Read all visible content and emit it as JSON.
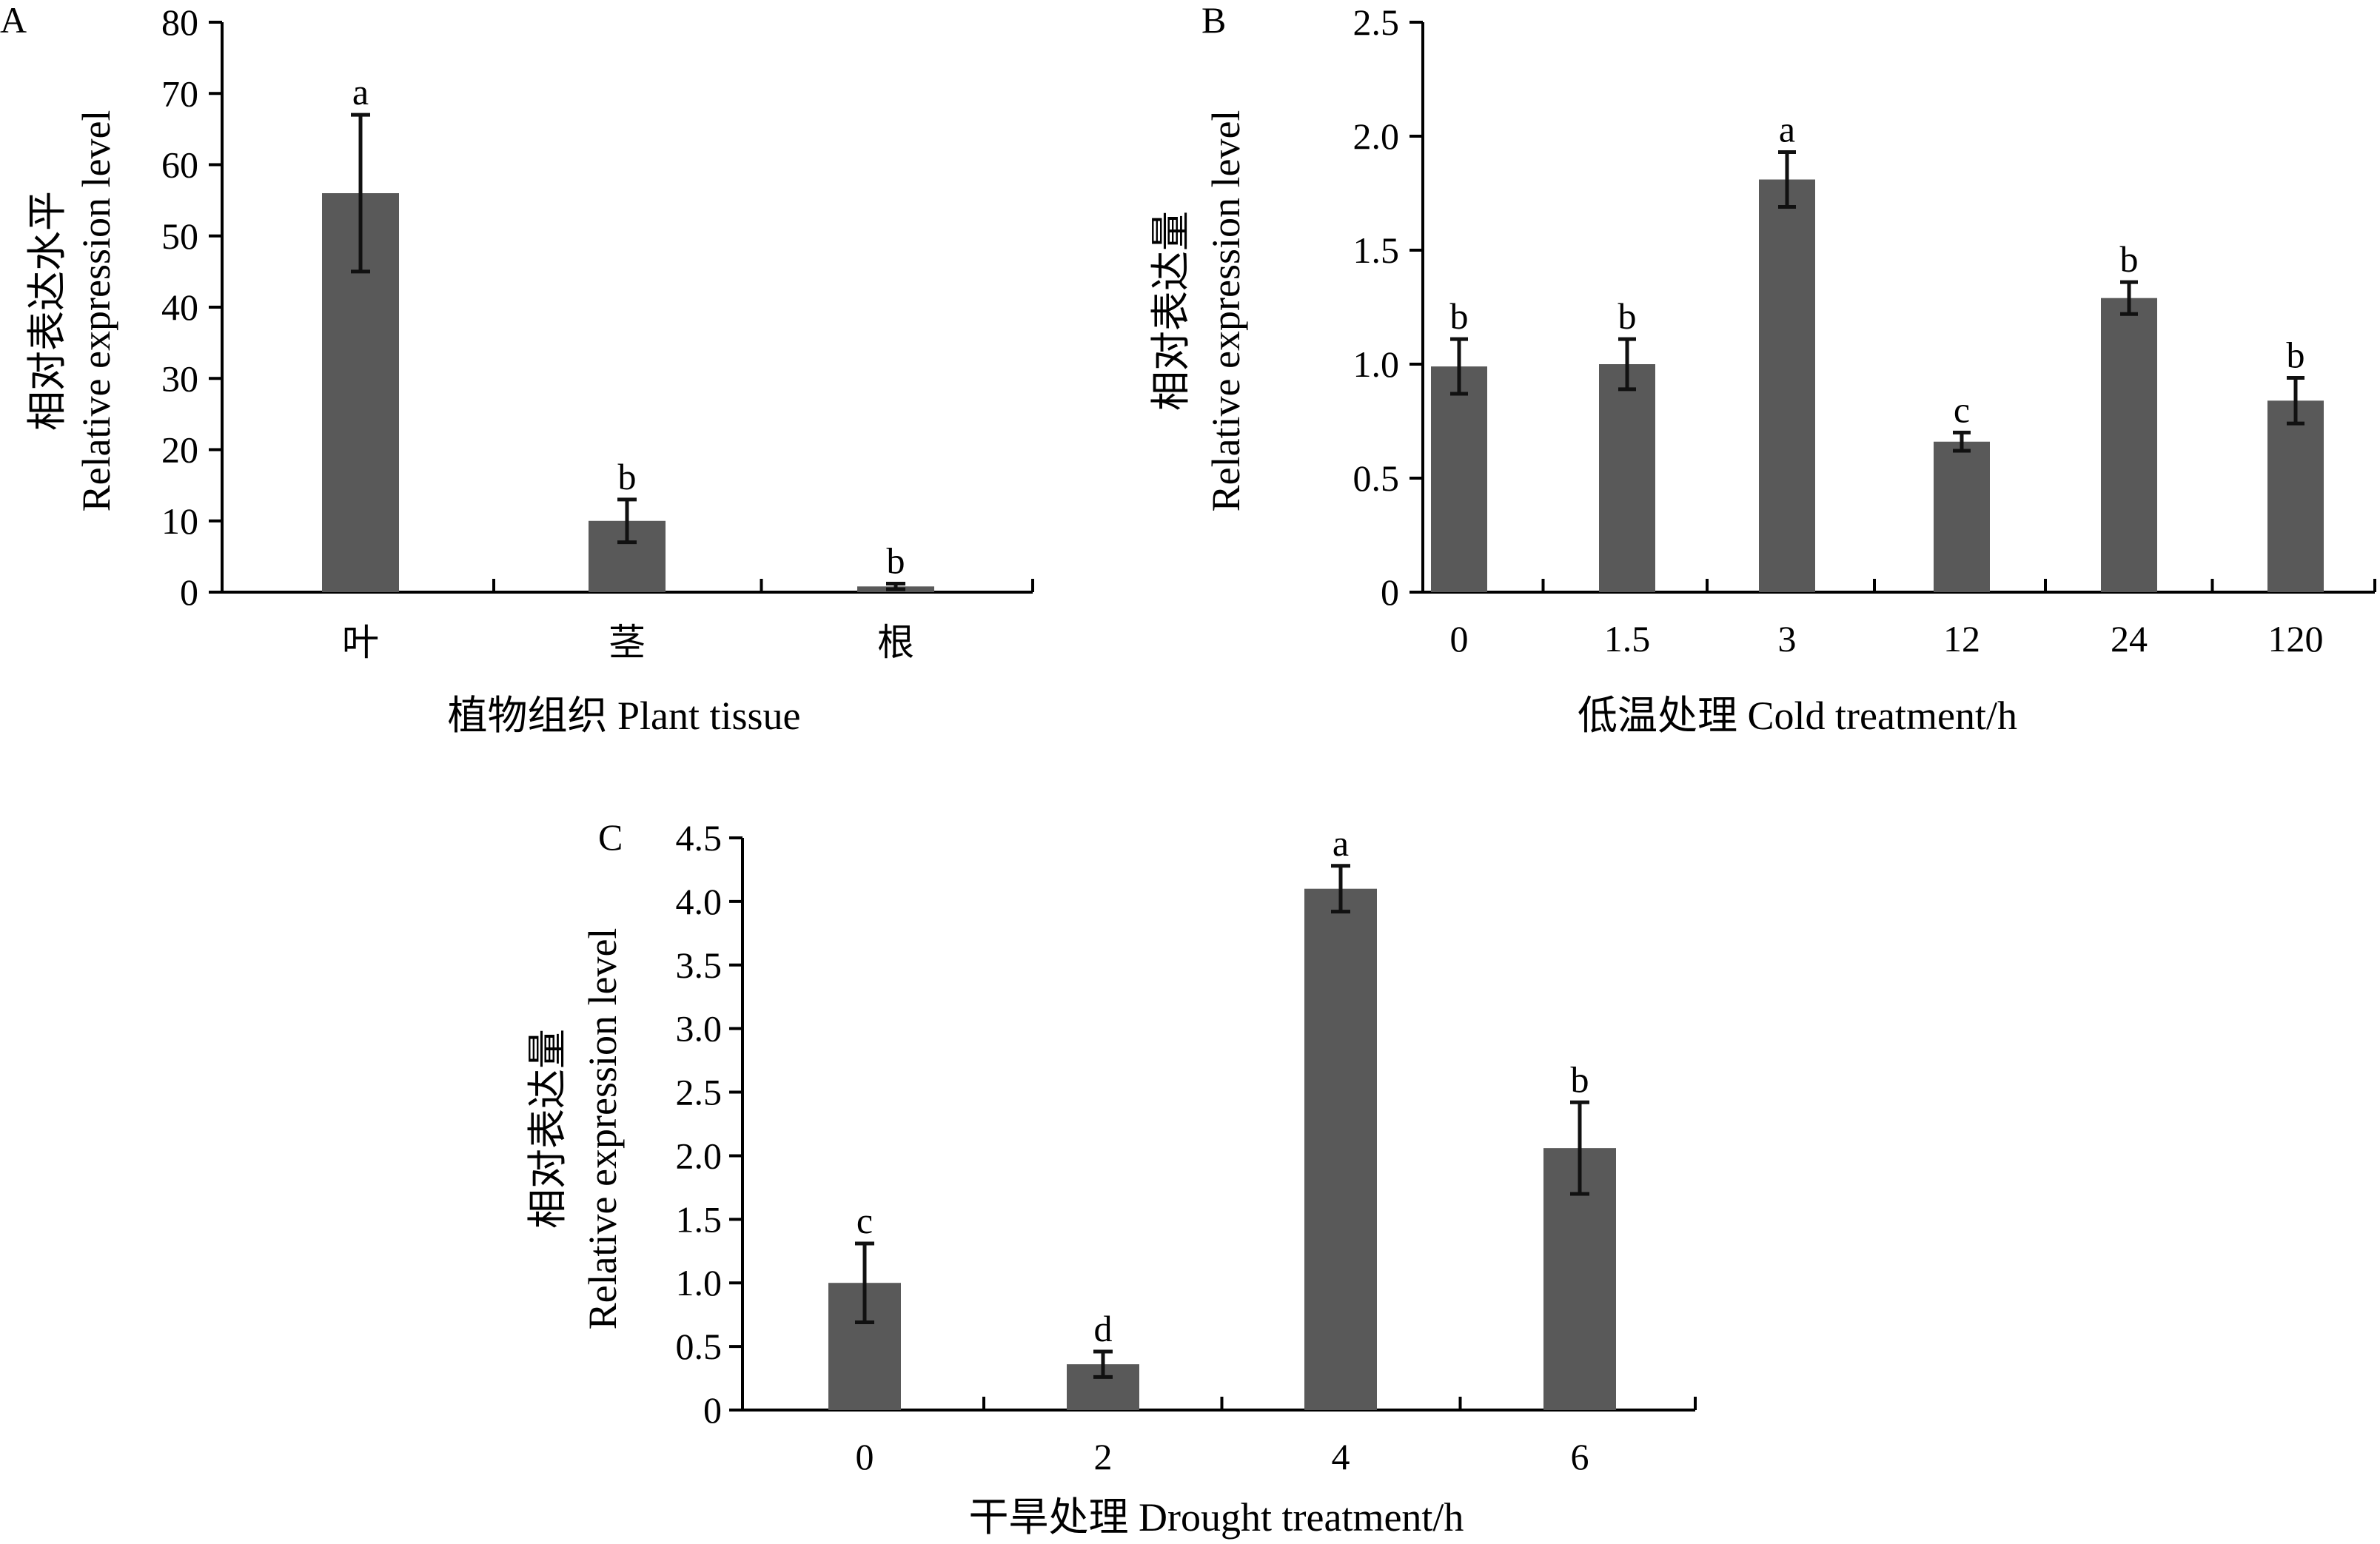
{
  "chart_data": [
    {
      "panel": "A",
      "type": "bar",
      "categories": [
        "叶",
        "茎",
        "根"
      ],
      "values": [
        56,
        10,
        0.8
      ],
      "errors": [
        11,
        3,
        0.4
      ],
      "letters": [
        "a",
        "b",
        "b"
      ],
      "ylim": [
        0,
        80
      ],
      "yticks": [
        0,
        10,
        20,
        30,
        40,
        50,
        60,
        70,
        80
      ],
      "ytick_labels": [
        "0",
        "10",
        "20",
        "30",
        "40",
        "50",
        "60",
        "70",
        "80"
      ],
      "ylabel_cn": "相对表达水平",
      "ylabel_en": "Relative expression level",
      "xlabel": "植物组织 Plant tissue",
      "grid": false
    },
    {
      "panel": "B",
      "type": "bar",
      "categories": [
        "0",
        "1.5",
        "3",
        "12",
        "24",
        "120"
      ],
      "values": [
        0.99,
        1.0,
        1.81,
        0.66,
        1.29,
        0.84
      ],
      "errors": [
        0.12,
        0.11,
        0.12,
        0.04,
        0.07,
        0.1
      ],
      "letters": [
        "b",
        "b",
        "a",
        "c",
        "b",
        "b"
      ],
      "ylim": [
        0,
        2.5
      ],
      "yticks": [
        0,
        0.5,
        1.0,
        1.5,
        2.0,
        2.5
      ],
      "ytick_labels": [
        "0",
        "0.5",
        "1.0",
        "1.5",
        "2.0",
        "2.5"
      ],
      "ylabel_cn": "相对表达量",
      "ylabel_en": "Relative expression level",
      "xlabel": "低温处理 Cold treatment/h",
      "grid": false
    },
    {
      "panel": "C",
      "type": "bar",
      "categories": [
        "0",
        "2",
        "4",
        "6"
      ],
      "values": [
        1.0,
        0.36,
        4.1,
        2.06
      ],
      "errors": [
        0.31,
        0.1,
        0.18,
        0.36
      ],
      "letters": [
        "c",
        "d",
        "a",
        "b"
      ],
      "ylim": [
        0,
        4.5
      ],
      "yticks": [
        0,
        0.5,
        1.0,
        1.5,
        2.0,
        2.5,
        3.0,
        3.5,
        4.0,
        4.5
      ],
      "ytick_labels": [
        "0",
        "0.5",
        "1.0",
        "1.5",
        "2.0",
        "2.5",
        "3.0",
        "3.5",
        "4.0",
        "4.5"
      ],
      "ylabel_cn": "相对表达量",
      "ylabel_en": "Relative expression level",
      "xlabel": "干旱处理 Drought treatment/h",
      "grid": false
    }
  ],
  "colors": {
    "bar": "#595959",
    "axis": "#000000"
  }
}
